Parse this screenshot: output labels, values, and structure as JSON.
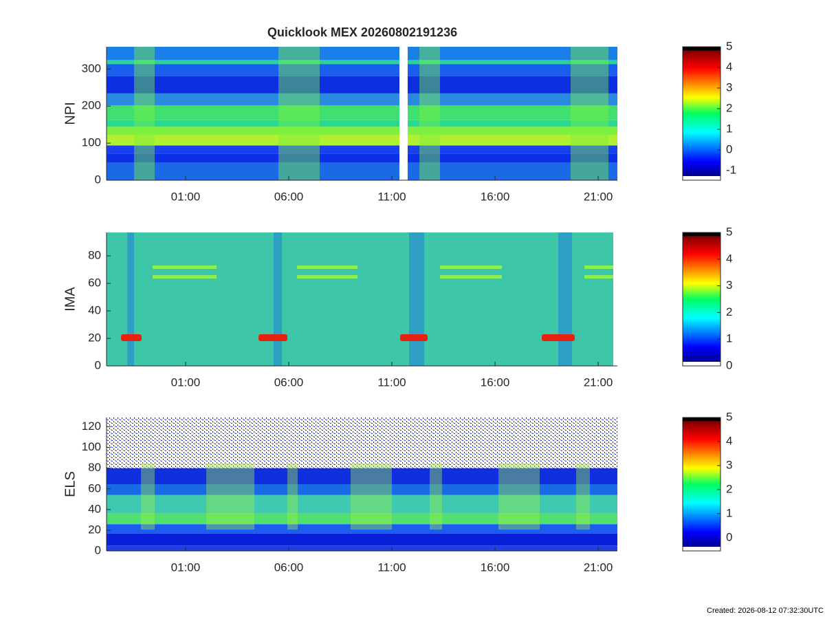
{
  "chart_data": [
    {
      "type": "heatmap",
      "title": "Quicklook MEX 20260802191236",
      "ylabel": "NPI",
      "xlim": [
        -2.83,
        21.93
      ],
      "xticks": [
        {
          "value": 1,
          "label": "01:00"
        },
        {
          "value": 6,
          "label": "06:00"
        },
        {
          "value": 11,
          "label": "11:00"
        },
        {
          "value": 16,
          "label": "16:00"
        },
        {
          "value": 21,
          "label": "21:00"
        }
      ],
      "ylim": [
        0,
        360
      ],
      "yticks": [
        0,
        100,
        200,
        300
      ],
      "clim": [
        -1.47,
        5
      ],
      "cticks": [
        -1,
        0,
        1,
        2,
        3,
        4,
        5
      ]
    },
    {
      "type": "heatmap",
      "ylabel": "IMA",
      "xlim": [
        -2.83,
        21.93
      ],
      "xticks": [
        {
          "value": 1,
          "label": "01:00"
        },
        {
          "value": 6,
          "label": "06:00"
        },
        {
          "value": 11,
          "label": "11:00"
        },
        {
          "value": 16,
          "label": "16:00"
        },
        {
          "value": 21,
          "label": "21:00"
        }
      ],
      "ylim": [
        0,
        97
      ],
      "yticks": [
        0,
        20,
        40,
        60,
        80
      ],
      "clim": [
        0,
        5
      ],
      "cticks": [
        0,
        1,
        2,
        3,
        4,
        5
      ]
    },
    {
      "type": "heatmap",
      "ylabel": "ELS",
      "xlim": [
        -2.83,
        21.93
      ],
      "xticks": [
        {
          "value": 1,
          "label": "01:00"
        },
        {
          "value": 6,
          "label": "06:00"
        },
        {
          "value": 11,
          "label": "11:00"
        },
        {
          "value": 16,
          "label": "16:00"
        },
        {
          "value": 21,
          "label": "21:00"
        }
      ],
      "ylim": [
        0,
        129
      ],
      "yticks": [
        0,
        20,
        40,
        60,
        80,
        100,
        120
      ],
      "clim": [
        -0.55,
        5
      ],
      "cticks": [
        0,
        1,
        2,
        3,
        4,
        5
      ]
    }
  ],
  "footer": "Created: 2026-08-12 07:32:30UTC"
}
